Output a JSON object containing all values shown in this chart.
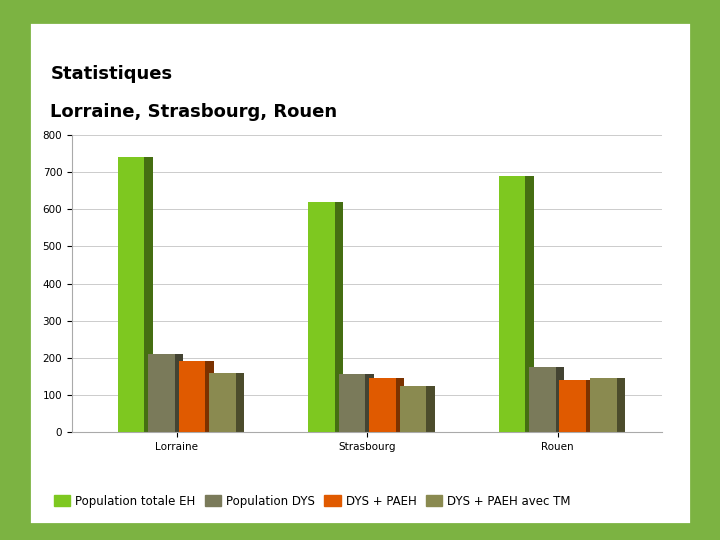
{
  "title_line1": "Statistiques",
  "title_line2": "Lorraine, Strasbourg, Rouen",
  "categories": [
    "Lorraine",
    "Strasbourg",
    "Rouen"
  ],
  "series": {
    "Population totale EH": [
      740,
      620,
      690
    ],
    "Population DYS": [
      210,
      155,
      175
    ],
    "DYS + PAEH": [
      190,
      145,
      140
    ],
    "DYS + PAEH avec TM": [
      160,
      125,
      145
    ]
  },
  "colors": {
    "Population totale EH": "#7ec820",
    "Population DYS": "#7a7a5a",
    "DYS + PAEH": "#e05a00",
    "DYS + PAEH avec TM": "#8a8a50"
  },
  "ylim": [
    0,
    800
  ],
  "yticks": [
    0,
    100,
    200,
    300,
    400,
    500,
    600,
    700,
    800
  ],
  "background_outer": "#7cb342",
  "background_inner": "#ffffff",
  "chart_bg": "#ffffff",
  "grid_color": "#cccccc",
  "title_fontsize": 13,
  "legend_fontsize": 8.5,
  "tick_fontsize": 7.5
}
